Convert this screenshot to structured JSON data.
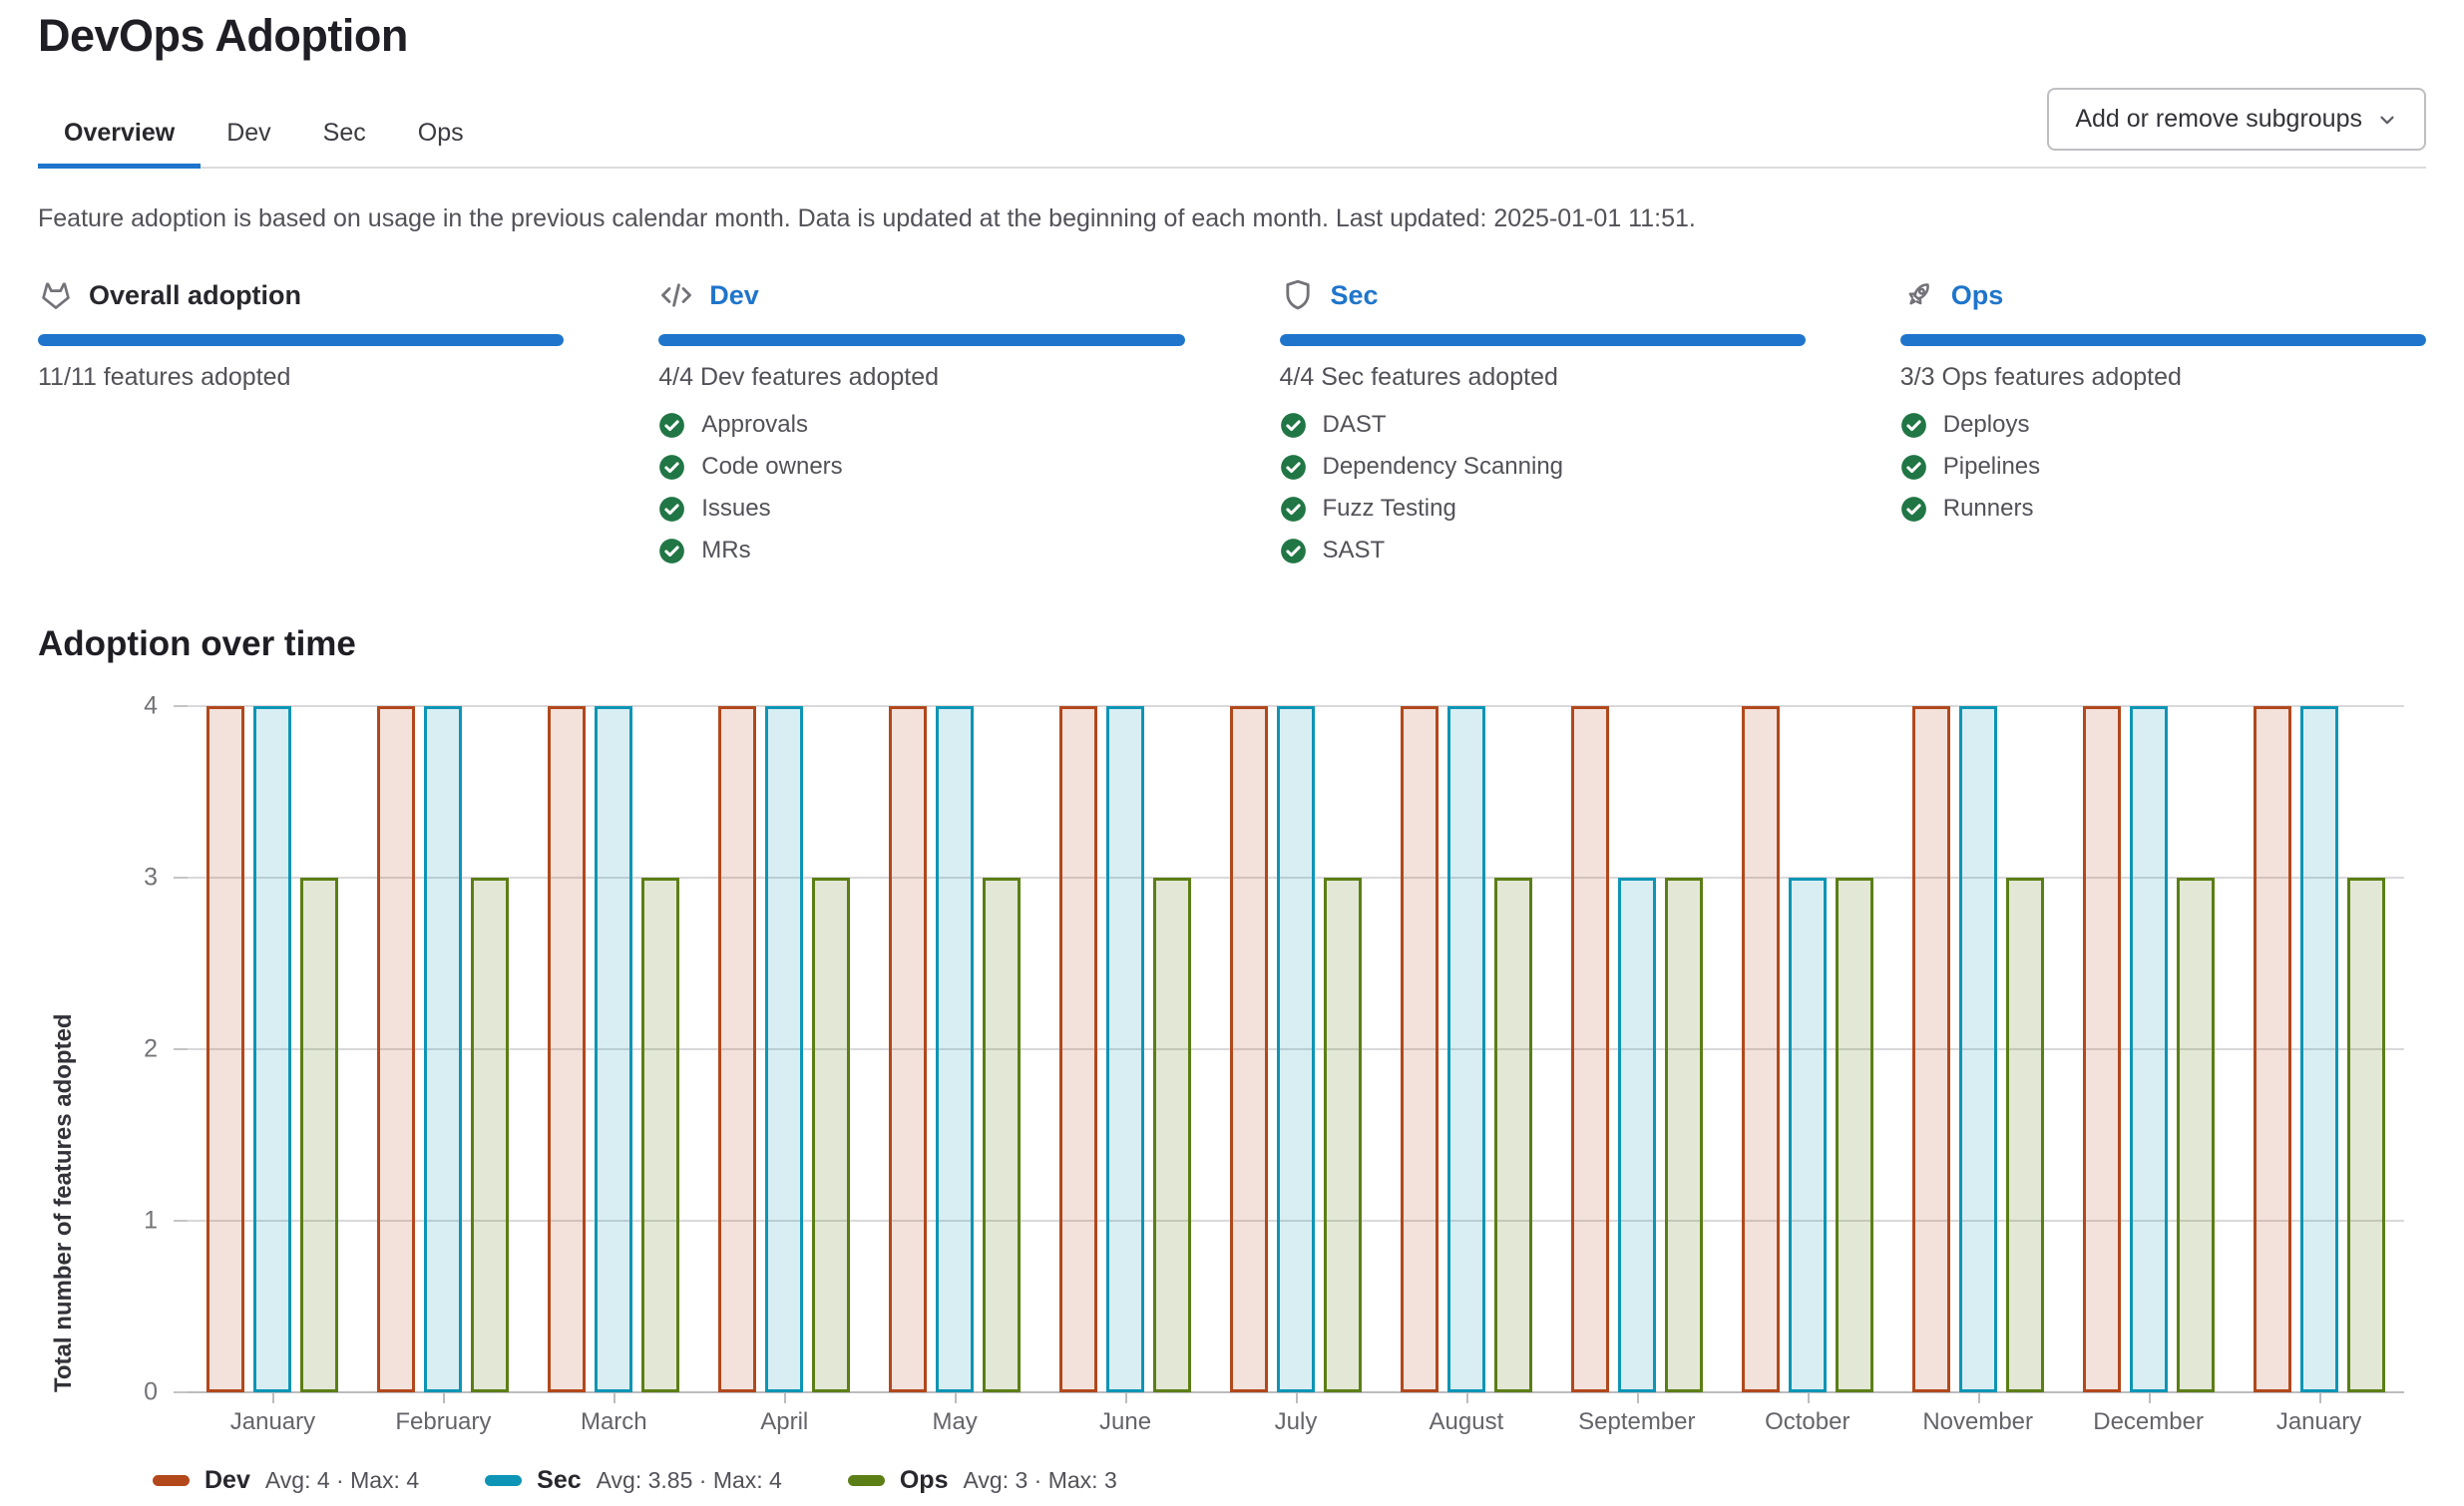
{
  "page": {
    "title": "DevOps Adoption"
  },
  "tabs": [
    {
      "label": "Overview",
      "active": true
    },
    {
      "label": "Dev",
      "active": false
    },
    {
      "label": "Sec",
      "active": false
    },
    {
      "label": "Ops",
      "active": false
    }
  ],
  "toolbar": {
    "add_remove_subgroups_label": "Add or remove subgroups"
  },
  "description": "Feature adoption is based on usage in the previous calendar month. Data is updated at the beginning of each month. Last updated: 2025-01-01 11:51.",
  "colors": {
    "accent_blue": "#1f75cb",
    "success_green": "#217645",
    "icon_gray": "#737278",
    "dev_series": "#b2481c",
    "sec_series": "#0e95b5",
    "ops_series": "#5c7e16"
  },
  "overview_columns": [
    {
      "id": "overall",
      "icon": "tanuki-icon",
      "title": "Overall adoption",
      "title_is_link": false,
      "progress_percent": 100,
      "subtext": "11/11 features adopted",
      "features": []
    },
    {
      "id": "dev",
      "icon": "code-icon",
      "title": "Dev",
      "title_is_link": true,
      "progress_percent": 100,
      "subtext": "4/4 Dev features adopted",
      "features": [
        "Approvals",
        "Code owners",
        "Issues",
        "MRs"
      ]
    },
    {
      "id": "sec",
      "icon": "shield-icon",
      "title": "Sec",
      "title_is_link": true,
      "progress_percent": 100,
      "subtext": "4/4 Sec features adopted",
      "features": [
        "DAST",
        "Dependency Scanning",
        "Fuzz Testing",
        "SAST"
      ]
    },
    {
      "id": "ops",
      "icon": "rocket-icon",
      "title": "Ops",
      "title_is_link": true,
      "progress_percent": 100,
      "subtext": "3/3 Ops features adopted",
      "features": [
        "Deploys",
        "Pipelines",
        "Runners"
      ]
    }
  ],
  "chart_section": {
    "title": "Adoption over time"
  },
  "chart_data": {
    "type": "bar",
    "title": "Adoption over time",
    "categories": [
      "January",
      "February",
      "March",
      "April",
      "May",
      "June",
      "July",
      "August",
      "September",
      "October",
      "November",
      "December",
      "January"
    ],
    "series": [
      {
        "name": "Dev",
        "color": "#b2481c",
        "fill": "rgba(178,72,28,0.16)",
        "values": [
          4,
          4,
          4,
          4,
          4,
          4,
          4,
          4,
          4,
          4,
          4,
          4,
          4
        ],
        "avg": "4",
        "max": "4"
      },
      {
        "name": "Sec",
        "color": "#0e95b5",
        "fill": "rgba(14,149,181,0.16)",
        "values": [
          4,
          4,
          4,
          4,
          4,
          4,
          4,
          4,
          3,
          3,
          4,
          4,
          4
        ],
        "avg": "3.85",
        "max": "4"
      },
      {
        "name": "Ops",
        "color": "#5c7e16",
        "fill": "rgba(92,126,22,0.18)",
        "values": [
          3,
          3,
          3,
          3,
          3,
          3,
          3,
          3,
          3,
          3,
          3,
          3,
          3
        ],
        "avg": "3",
        "max": "3"
      }
    ],
    "xlabel": "",
    "ylabel": "Total number of features adopted",
    "ylim": [
      0,
      4
    ],
    "yticks": [
      0,
      1,
      2,
      3,
      4
    ],
    "grid": true,
    "legend_position": "bottom",
    "legend_stats": {
      "avg_prefix": "Avg: ",
      "max_prefix": "Max: ",
      "separator": " · "
    }
  }
}
